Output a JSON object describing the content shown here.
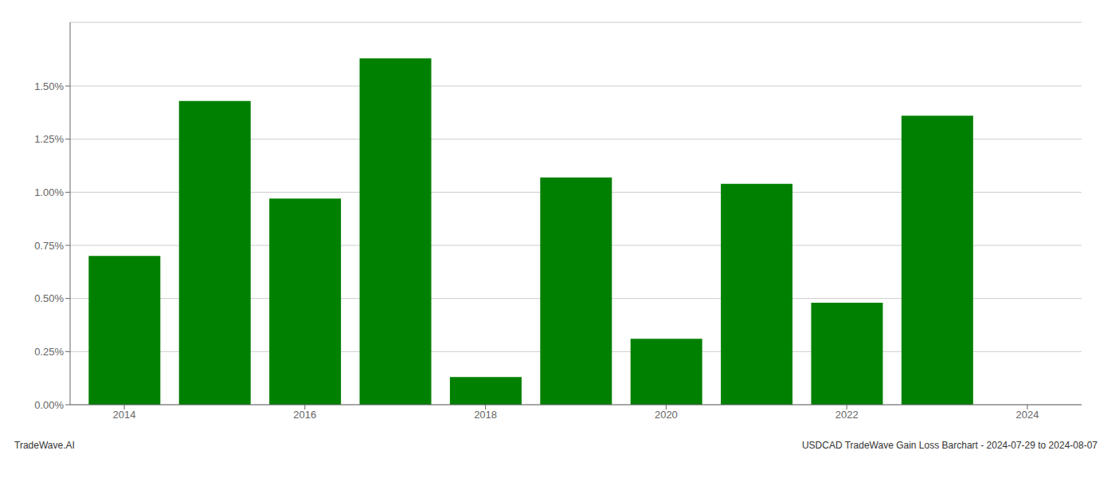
{
  "chart_data": {
    "type": "bar",
    "x": [
      2014,
      2015,
      2016,
      2017,
      2018,
      2019,
      2020,
      2021,
      2022,
      2023
    ],
    "values": [
      0.007,
      0.0143,
      0.0097,
      0.0163,
      0.0013,
      0.0107,
      0.0031,
      0.0104,
      0.0048,
      0.0136
    ],
    "color": "#008000",
    "xlim": [
      2013.4,
      2024.6
    ],
    "xticks": [
      2014,
      2016,
      2018,
      2020,
      2022,
      2024
    ],
    "ylim": [
      0,
      0.018
    ],
    "yticks": [
      {
        "value": 0,
        "label": "0.00%"
      },
      {
        "value": 0.0025,
        "label": "0.25%"
      },
      {
        "value": 0.005,
        "label": "0.50%"
      },
      {
        "value": 0.0075,
        "label": "0.75%"
      },
      {
        "value": 0.01,
        "label": "1.00%"
      },
      {
        "value": 0.0125,
        "label": "1.25%"
      },
      {
        "value": 0.015,
        "label": "1.50%"
      }
    ],
    "grid": true,
    "annotations": [
      "TradeWave.AI",
      "USDCAD TradeWave Gain Loss Barchart - 2024-07-29 to 2024-08-07"
    ]
  }
}
